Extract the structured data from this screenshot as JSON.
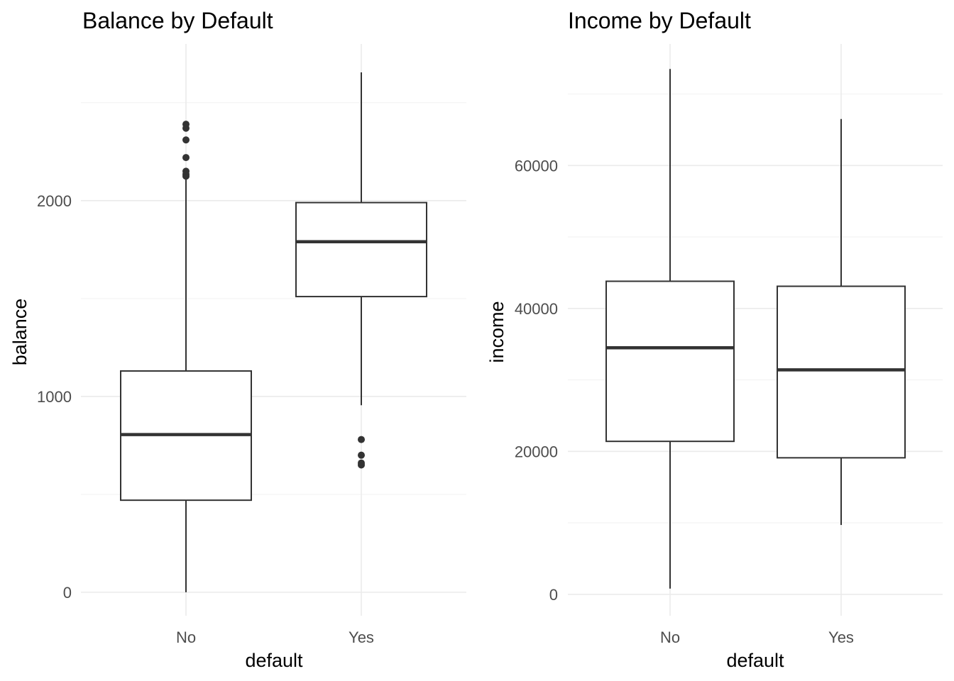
{
  "chart_data": [
    {
      "type": "boxplot",
      "title": "Balance by Default",
      "xlabel": "default",
      "ylabel": "balance",
      "categories": [
        "No",
        "Yes"
      ],
      "ylim": [
        -120,
        2800
      ],
      "yticks": [
        0,
        1000,
        2000
      ],
      "ytick_labels": [
        "0",
        "1000",
        "2000"
      ],
      "grid": true,
      "boxes": [
        {
          "category": "No",
          "whisker_low": 0,
          "q1": 470,
          "median": 805,
          "q3": 1130,
          "whisker_high": 2110,
          "outliers": [
            2125,
            2135,
            2150,
            2220,
            2310,
            2370,
            2390
          ]
        },
        {
          "category": "Yes",
          "whisker_low": 955,
          "q1": 1510,
          "median": 1790,
          "q3": 1990,
          "whisker_high": 2655,
          "outliers": [
            650,
            660,
            700,
            780
          ]
        }
      ]
    },
    {
      "type": "boxplot",
      "title": "Income by Default",
      "xlabel": "default",
      "ylabel": "income",
      "categories": [
        "No",
        "Yes"
      ],
      "ylim": [
        -3000,
        77000
      ],
      "yticks": [
        0,
        20000,
        40000,
        60000
      ],
      "ytick_labels": [
        "0",
        "20000",
        "40000",
        "60000"
      ],
      "grid": true,
      "boxes": [
        {
          "category": "No",
          "whisker_low": 800,
          "q1": 21400,
          "median": 34500,
          "q3": 43800,
          "whisker_high": 73500,
          "outliers": []
        },
        {
          "category": "Yes",
          "whisker_low": 9700,
          "q1": 19100,
          "median": 31400,
          "q3": 43100,
          "whisker_high": 66500,
          "outliers": []
        }
      ]
    }
  ]
}
